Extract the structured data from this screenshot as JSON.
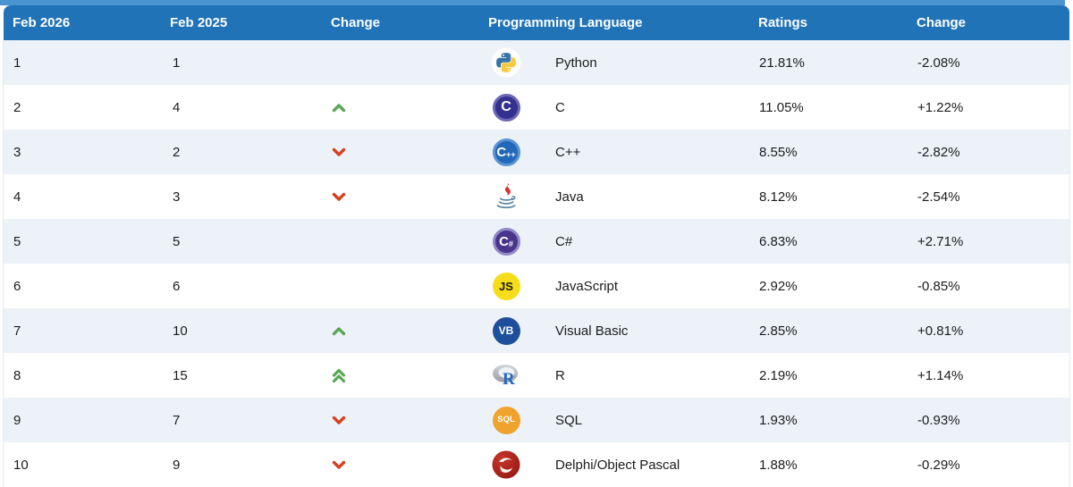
{
  "header": {
    "cols": [
      "Feb 2026",
      "Feb 2025",
      "Change",
      "Programming Language",
      "Ratings",
      "Change"
    ]
  },
  "rows": [
    {
      "rank2026": "1",
      "rank2025": "1",
      "move": "none",
      "icon": {
        "type": "svg-python",
        "name": "python-icon"
      },
      "language": "Python",
      "rating": "21.81%",
      "change": "-2.08%"
    },
    {
      "rank2026": "2",
      "rank2025": "4",
      "move": "up",
      "icon": {
        "type": "badge",
        "name": "c-icon",
        "text": "C",
        "sup": "",
        "bg": "#34308f",
        "ring": "#6c67b5",
        "fg": "#ffffff",
        "size": "16px"
      },
      "language": "C",
      "rating": "11.05%",
      "change": "+1.22%"
    },
    {
      "rank2026": "3",
      "rank2025": "2",
      "move": "down",
      "icon": {
        "type": "badge",
        "name": "cpp-icon",
        "text": "C",
        "sup": "++",
        "bg": "#2268b8",
        "ring": "#5a92d4",
        "fg": "#ffffff",
        "size": "15px"
      },
      "language": "C++",
      "rating": "8.55%",
      "change": "-2.82%"
    },
    {
      "rank2026": "4",
      "rank2025": "3",
      "move": "down",
      "icon": {
        "type": "svg-java",
        "name": "java-icon"
      },
      "language": "Java",
      "rating": "8.12%",
      "change": "-2.54%"
    },
    {
      "rank2026": "5",
      "rank2025": "5",
      "move": "none",
      "icon": {
        "type": "badge",
        "name": "csharp-icon",
        "text": "C",
        "sup": "#",
        "bg": "#49358c",
        "ring": "#9187c9",
        "fg": "#ffffff",
        "size": "15px"
      },
      "language": "C#",
      "rating": "6.83%",
      "change": "+2.71%"
    },
    {
      "rank2026": "6",
      "rank2025": "6",
      "move": "none",
      "icon": {
        "type": "badge",
        "name": "javascript-icon",
        "text": "JS",
        "sup": "",
        "bg": "#f5de19",
        "ring": "",
        "fg": "#1a1a1a",
        "size": "13px"
      },
      "language": "JavaScript",
      "rating": "2.92%",
      "change": "-0.85%"
    },
    {
      "rank2026": "7",
      "rank2025": "10",
      "move": "up",
      "icon": {
        "type": "badge",
        "name": "visual-basic-icon",
        "text": "VB",
        "sup": "",
        "bg": "#1d4f9c",
        "ring": "",
        "fg": "#ffffff",
        "size": "12px"
      },
      "language": "Visual Basic",
      "rating": "2.85%",
      "change": "+0.81%"
    },
    {
      "rank2026": "8",
      "rank2025": "15",
      "move": "up2",
      "icon": {
        "type": "svg-r",
        "name": "r-icon"
      },
      "language": "R",
      "rating": "2.19%",
      "change": "+1.14%"
    },
    {
      "rank2026": "9",
      "rank2025": "7",
      "move": "down",
      "icon": {
        "type": "badge",
        "name": "sql-icon",
        "text": "SQL",
        "sup": "",
        "bg": "#efa32c",
        "ring": "",
        "fg": "#ffffff",
        "size": "9.5px"
      },
      "language": "SQL",
      "rating": "1.93%",
      "change": "-0.93%"
    },
    {
      "rank2026": "10",
      "rank2025": "9",
      "move": "down",
      "icon": {
        "type": "svg-delphi",
        "name": "delphi-icon"
      },
      "language": "Delphi/Object Pascal",
      "rating": "1.88%",
      "change": "-0.29%"
    }
  ],
  "colors": {
    "header_bg": "#2173b8",
    "top_strip": "#4a95d1",
    "row_stripe": "#edf2f8",
    "arrow_up": "#5aa755",
    "arrow_down": "#d7401e"
  }
}
